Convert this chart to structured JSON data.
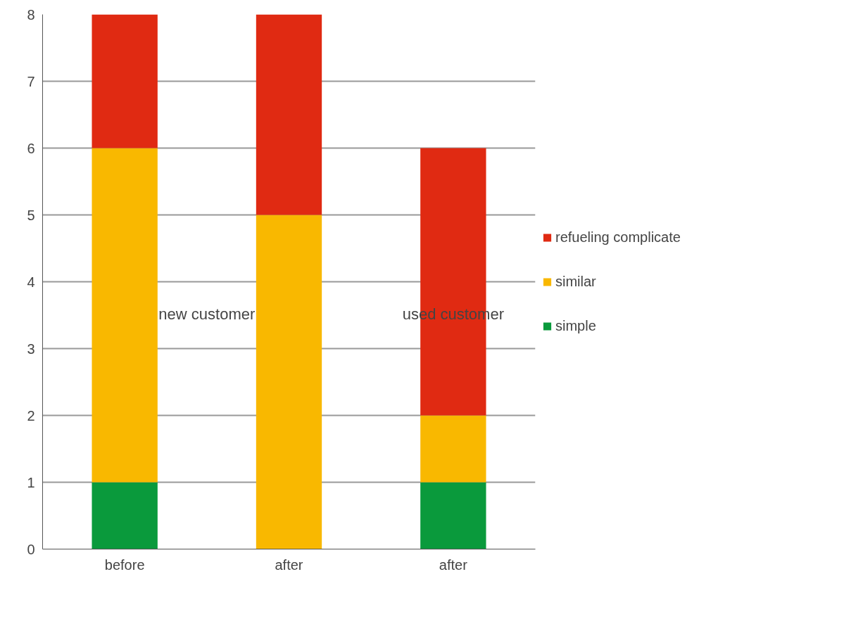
{
  "chart_data": {
    "type": "bar",
    "stacked": true,
    "categories": [
      "before",
      "after",
      "after"
    ],
    "series": [
      {
        "name": "simple",
        "color": "#0a9a3c",
        "values": [
          1,
          0,
          1
        ]
      },
      {
        "name": "similar",
        "color": "#f9b800",
        "values": [
          5,
          5,
          1
        ]
      },
      {
        "name": "refueling complicate",
        "color": "#e02a12",
        "values": [
          2,
          3,
          4
        ]
      }
    ],
    "ylim": [
      0,
      8
    ],
    "yticks": [
      0,
      1,
      2,
      3,
      4,
      5,
      6,
      7,
      8
    ],
    "grid": "y",
    "legend": "right",
    "annotations": [
      "new customer",
      "used customer"
    ]
  }
}
